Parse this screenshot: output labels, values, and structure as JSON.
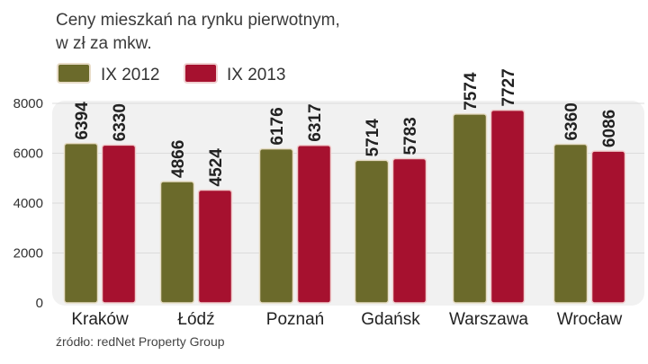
{
  "chart_data": {
    "type": "bar",
    "title": "Ceny mieszkań na rynku pierwotnym,",
    "subtitle": "w zł za mkw.",
    "categories": [
      "Kraków",
      "Łódź",
      "Poznań",
      "Gdańsk",
      "Warszawa",
      "Wrocław"
    ],
    "series": [
      {
        "name": "IX 2012",
        "color": "#6b6a2b",
        "values": [
          6394,
          4866,
          6176,
          5714,
          7574,
          6360
        ]
      },
      {
        "name": "IX 2013",
        "color": "#a6112f",
        "values": [
          6330,
          4524,
          6317,
          5783,
          7727,
          6086
        ]
      }
    ],
    "yticks": [
      "0",
      "2000",
      "4000",
      "6000",
      "8000"
    ],
    "ylim": [
      0,
      8000
    ],
    "grid": true,
    "legend": "top-left",
    "xlabel": "",
    "ylabel": "",
    "source": "źródło: redNet Property Group"
  }
}
